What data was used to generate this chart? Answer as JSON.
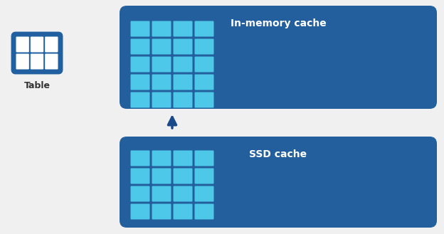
{
  "bg_color": "#f0f0f0",
  "box_bg": "#235f9c",
  "cell_color": "#4dc8e8",
  "cell_border": "#ffffff",
  "arrow_color": "#1a4a8a",
  "text_color": "#ffffff",
  "table_icon_color": "#2060a0",
  "table_label_color": "#333333",
  "mem_label": "In-memory cache",
  "ssd_label": "SSD cache",
  "table_label": "Table",
  "mem_grid_cols": 4,
  "mem_grid_rows": 5,
  "ssd_grid_cols": 4,
  "ssd_grid_rows": 4,
  "table_icon_rows": 2,
  "table_icon_cols": 3
}
